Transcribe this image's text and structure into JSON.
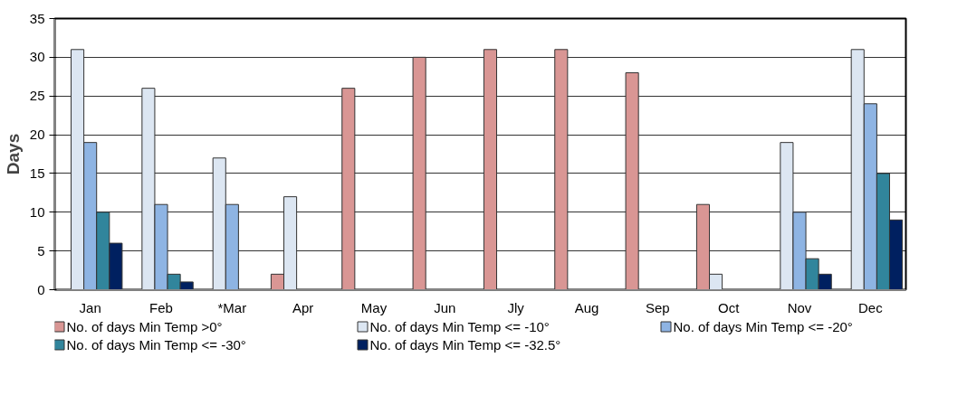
{
  "chart_data": {
    "type": "bar",
    "ylabel": "Days",
    "categories": [
      "Jan",
      "Feb",
      "*Mar",
      "Apr",
      "May",
      "Jun",
      "Jly",
      "Aug",
      "Sep",
      "Oct",
      "Nov",
      "Dec"
    ],
    "series": [
      {
        "name": "No. of days Min Temp >0°",
        "color": "#d99694",
        "values": [
          0,
          0,
          0,
          2,
          26,
          30,
          31,
          31,
          28,
          11,
          0,
          0
        ]
      },
      {
        "name": "No. of days Min Temp <= -10°",
        "color": "#dce6f2",
        "values": [
          31,
          26,
          17,
          12,
          0,
          0,
          0,
          0,
          0,
          2,
          19,
          31
        ]
      },
      {
        "name": "No. of days Min Temp <= -20°",
        "color": "#8eb4e3",
        "values": [
          19,
          11,
          11,
          0,
          0,
          0,
          0,
          0,
          0,
          0,
          10,
          24
        ]
      },
      {
        "name": "No. of days Min Temp <= -30°",
        "color": "#31859c",
        "values": [
          10,
          2,
          0,
          0,
          0,
          0,
          0,
          0,
          0,
          0,
          4,
          15
        ]
      },
      {
        "name": "No. of days Min Temp <= -32.5°",
        "color": "#002060",
        "values": [
          6,
          1,
          0,
          0,
          0,
          0,
          0,
          0,
          0,
          0,
          2,
          9
        ]
      }
    ],
    "ylim": [
      0,
      35
    ],
    "yticks": [
      0,
      5,
      10,
      15,
      20,
      25,
      30,
      35
    ],
    "grid": "y",
    "legend": "bottom"
  }
}
